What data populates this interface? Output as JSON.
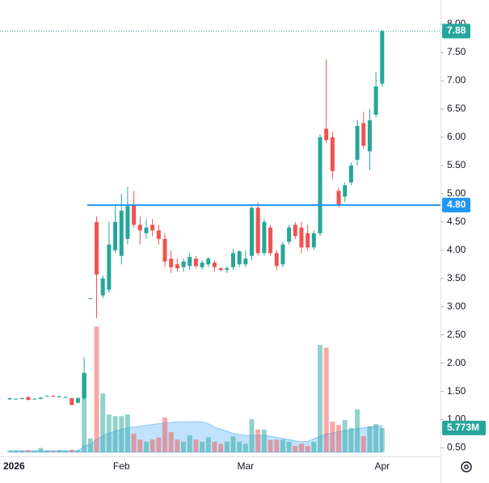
{
  "chart_data": {
    "type": "candlestick",
    "categories": [
      null,
      "2026",
      null,
      null,
      null,
      null,
      null,
      null,
      null,
      null,
      null,
      null,
      null,
      null,
      null,
      null,
      null,
      null,
      "Feb",
      null,
      null,
      null,
      null,
      null,
      null,
      null,
      null,
      null,
      null,
      null,
      null,
      null,
      null,
      null,
      null,
      null,
      null,
      null,
      "Mar",
      null,
      null,
      null,
      null,
      null,
      null,
      null,
      null,
      null,
      null,
      null,
      null,
      null,
      null,
      null,
      null,
      null,
      null,
      null,
      null,
      null,
      "Apr"
    ],
    "open": [
      1.36,
      1.37,
      1.37,
      1.4,
      1.37,
      1.37,
      1.42,
      1.42,
      1.4,
      1.39,
      1.38,
      1.3,
      1.38,
      3.15,
      4.5,
      3.2,
      3.3,
      4.0,
      3.9,
      4.2,
      4.8,
      4.45,
      4.3,
      4.45,
      4.35,
      4.2,
      3.85,
      3.75,
      3.7,
      3.72,
      3.85,
      3.7,
      3.75,
      3.78,
      3.68,
      3.65,
      3.7,
      3.75,
      3.75,
      3.9,
      4.75,
      3.95,
      4.4,
      3.95,
      3.75,
      4.15,
      4.45,
      4.4,
      4.3,
      4.05,
      4.3,
      6.15,
      6.0,
      5.05,
      4.95,
      5.2,
      5.6,
      6.25,
      5.75,
      6.4,
      6.95
    ],
    "high": [
      1.39,
      1.38,
      1.39,
      1.41,
      1.38,
      1.4,
      1.43,
      1.43,
      1.42,
      1.41,
      1.39,
      1.4,
      2.1,
      3.15,
      4.6,
      3.55,
      4.5,
      4.8,
      5.0,
      5.12,
      5.05,
      4.6,
      4.55,
      4.55,
      4.45,
      4.3,
      4.0,
      3.85,
      3.85,
      3.95,
      3.9,
      3.82,
      3.88,
      3.82,
      3.7,
      3.72,
      4.02,
      4.0,
      4.0,
      4.78,
      4.85,
      4.55,
      4.45,
      4.0,
      4.15,
      4.45,
      4.5,
      4.5,
      4.45,
      4.35,
      6.05,
      7.38,
      6.1,
      5.1,
      5.2,
      5.55,
      6.3,
      6.45,
      6.5,
      7.15,
      7.9
    ],
    "low": [
      1.35,
      1.36,
      1.36,
      1.34,
      1.36,
      1.36,
      1.41,
      1.4,
      1.39,
      1.38,
      1.25,
      1.29,
      1.35,
      3.15,
      2.8,
      3.15,
      3.25,
      3.95,
      3.75,
      4.1,
      4.4,
      4.1,
      4.2,
      4.25,
      4.1,
      3.7,
      3.6,
      3.62,
      3.62,
      3.65,
      3.68,
      3.65,
      3.7,
      3.62,
      3.62,
      3.6,
      3.65,
      3.7,
      3.7,
      3.82,
      3.9,
      3.9,
      3.9,
      3.65,
      3.7,
      4.1,
      4.2,
      3.95,
      4.0,
      4.0,
      4.25,
      5.9,
      5.25,
      4.75,
      4.85,
      5.15,
      5.5,
      5.8,
      5.42,
      6.35,
      6.9
    ],
    "close": [
      1.38,
      1.37,
      1.38,
      1.35,
      1.37,
      1.39,
      1.42,
      1.41,
      1.41,
      1.4,
      1.26,
      1.38,
      1.82,
      3.15,
      3.57,
      3.5,
      4.1,
      4.5,
      4.7,
      4.78,
      4.45,
      4.35,
      4.4,
      4.35,
      4.2,
      3.8,
      3.7,
      3.68,
      3.8,
      3.88,
      3.72,
      3.78,
      3.85,
      3.7,
      3.65,
      3.68,
      3.95,
      3.98,
      3.85,
      4.75,
      3.95,
      4.5,
      3.95,
      3.72,
      4.1,
      4.4,
      4.25,
      4.05,
      4.05,
      4.3,
      6.0,
      5.95,
      5.4,
      4.8,
      5.15,
      5.5,
      6.2,
      5.85,
      6.3,
      6.9,
      7.88
    ],
    "volume": [
      0.4,
      0.4,
      0.4,
      0.5,
      0.4,
      1.0,
      0.4,
      0.4,
      0.5,
      0.4,
      0.6,
      0.5,
      19,
      3.3,
      30,
      14,
      9,
      8.6,
      8.6,
      9,
      4.4,
      3,
      2.5,
      3,
      3.5,
      8.3,
      4.8,
      3,
      2.5,
      4,
      3,
      2.5,
      3.5,
      2.5,
      2,
      2.5,
      3.8,
      2.5,
      2,
      7.9,
      5.4,
      5.4,
      2.9,
      3,
      3,
      2.5,
      1.5,
      2,
      1.5,
      2.5,
      25.6,
      25,
      7.3,
      6.5,
      7.7,
      5.8,
      10.2,
      3.8,
      6.2,
      6.7,
      5.773
    ],
    "volume_ma": [
      0.3,
      0.3,
      0.3,
      0.3,
      0.3,
      0.3,
      0.3,
      0.3,
      0.3,
      0.3,
      0.3,
      0.3,
      1.5,
      1.8,
      3,
      4,
      4.5,
      5,
      5.4,
      5.8,
      6,
      6.2,
      6.4,
      6.6,
      6.8,
      7,
      7.1,
      7.2,
      7.2,
      7.3,
      7.3,
      7.2,
      6.8,
      6,
      5.5,
      5,
      4.5,
      4.2,
      4,
      4,
      4,
      4,
      3.8,
      3.5,
      3.3,
      3,
      2.7,
      2.5,
      2.6,
      3.2,
      3.8,
      4.3,
      4.6,
      4.9,
      5.1,
      5.3,
      5.6,
      5.8,
      6,
      6.2,
      6.4
    ],
    "volume_last_label": "5.773M",
    "up_color": "#26a69a",
    "down_color": "#ef5350",
    "volume_up_color": "rgba(38,166,154,0.5)",
    "volume_down_color": "rgba(239,83,80,0.5)",
    "volume_ma_color": "rgba(33,150,243,0.28)",
    "hline": {
      "value": 4.8,
      "label": "4.80"
    },
    "hline_color": "#2196f3",
    "last_price": {
      "value": 7.88,
      "label": "7.88"
    },
    "ylim": [
      0.35,
      8.43
    ],
    "vlim": [
      -1,
      108
    ],
    "yticks": [
      {
        "value": 0.5,
        "label": "0.50"
      },
      {
        "value": 1,
        "label": "1.00"
      },
      {
        "value": 1.5,
        "label": "1.50"
      },
      {
        "value": 2,
        "label": "2.00"
      },
      {
        "value": 2.5,
        "label": "2.50"
      },
      {
        "value": 3,
        "label": "3.00"
      },
      {
        "value": 3.5,
        "label": "3.50"
      },
      {
        "value": 4,
        "label": "4.00"
      },
      {
        "value": 4.5,
        "label": "4.50"
      },
      {
        "value": 5,
        "label": "5.00"
      },
      {
        "value": 5.5,
        "label": "5.50"
      },
      {
        "value": 6,
        "label": "6.00"
      },
      {
        "value": 6.5,
        "label": "6.50"
      },
      {
        "value": 7,
        "label": "7.00"
      },
      {
        "value": 7.5,
        "label": "7.50"
      },
      {
        "value": 8,
        "label": "8.00"
      }
    ],
    "grid": false
  }
}
